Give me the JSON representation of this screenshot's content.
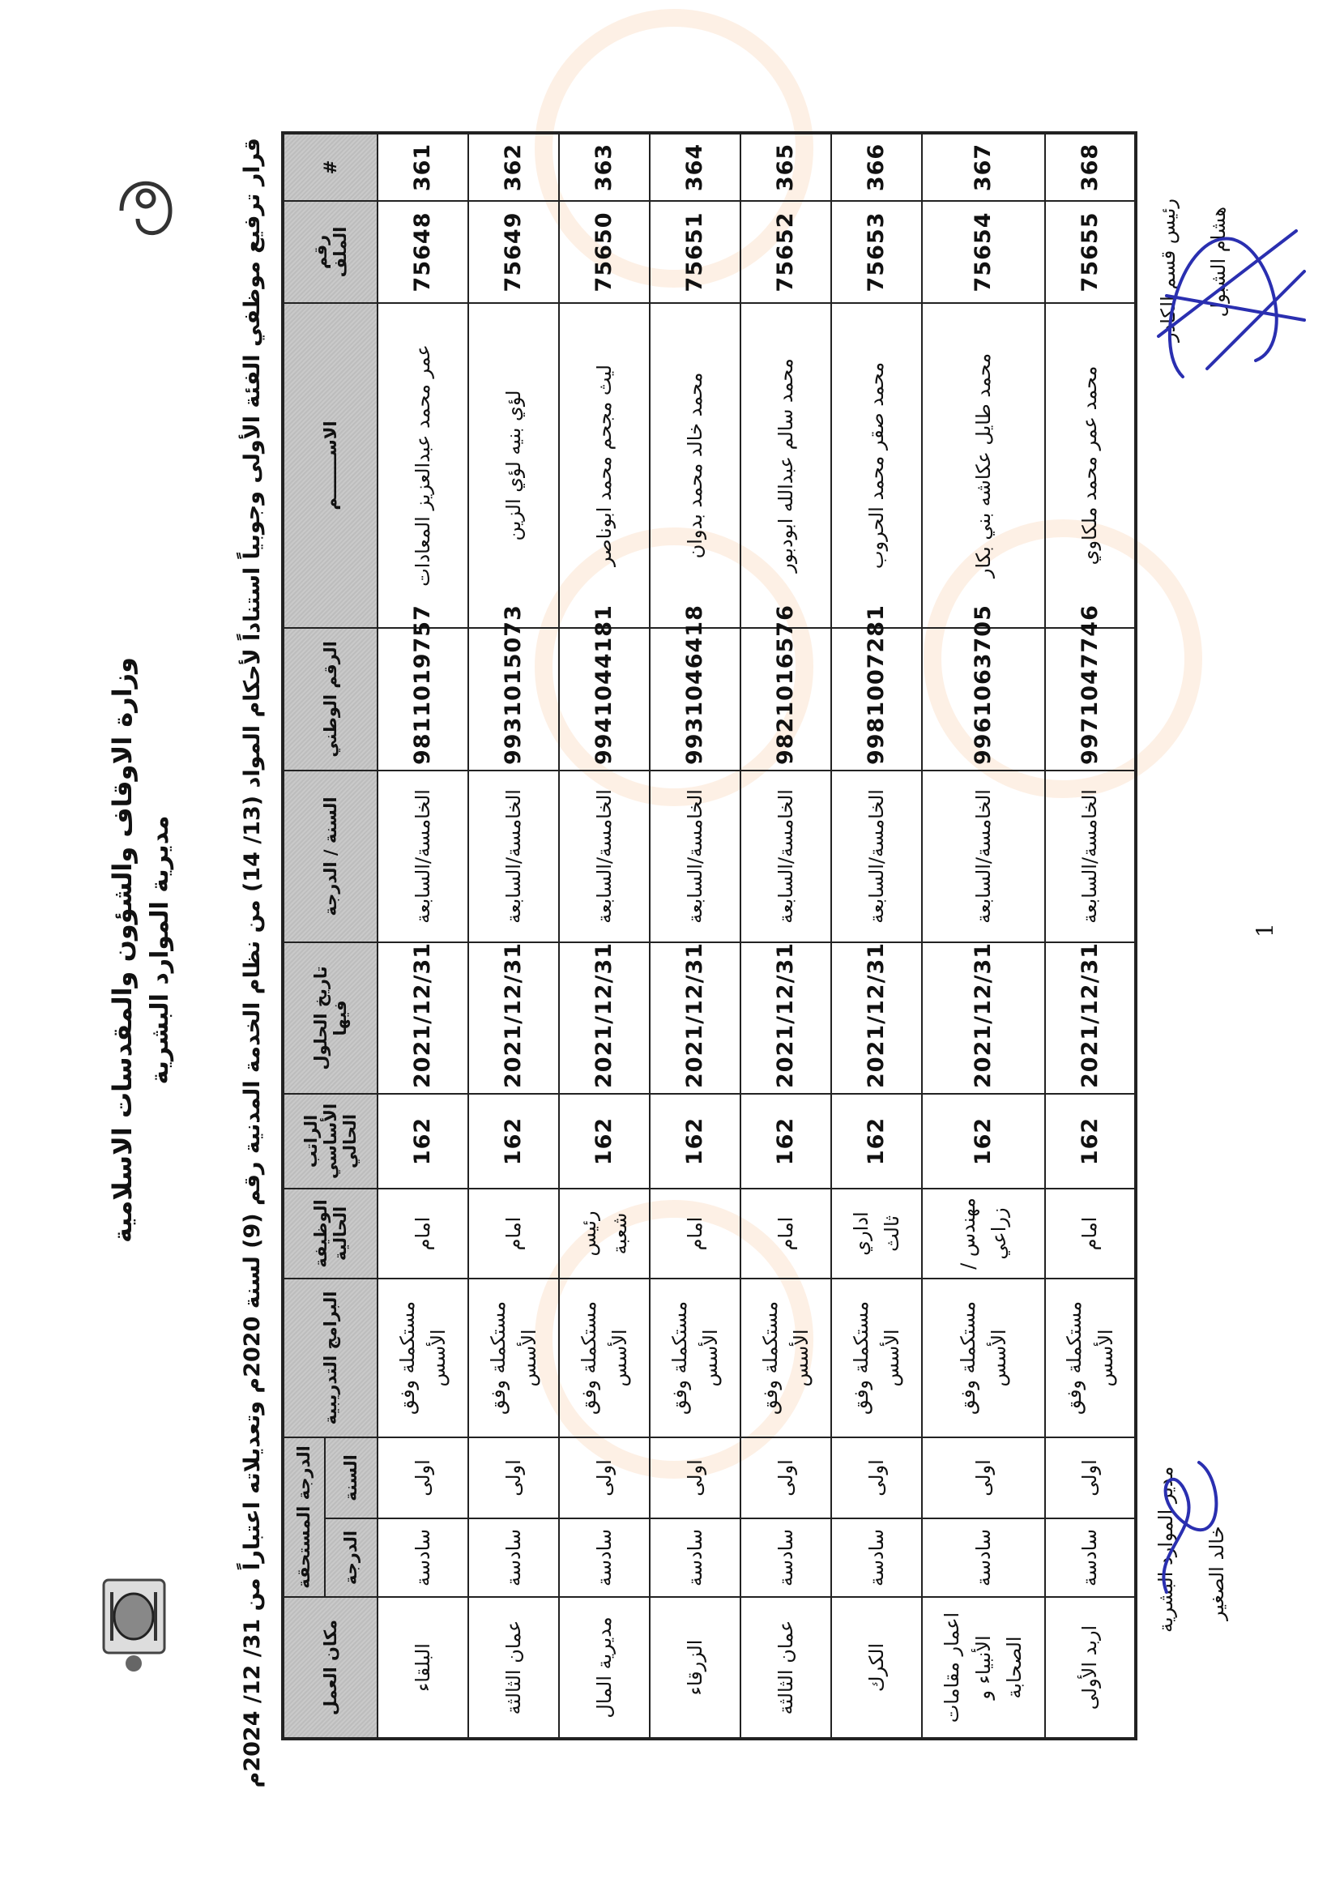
{
  "header": {
    "ministry": "وزارة الاوقاف والشؤون والمقدسات الاسلامية",
    "department": "مديرية الموارد البشرية",
    "decision_title": "قرار ترفيع موظفي الفئة الأولى وجوبياً استناداً لأحكام المواد (13/ 14) من نظام الخدمة المدنية رقم (9) لسنة 2020م وتعديلاته اعتباراً من 31/ 12/ 2024م"
  },
  "table": {
    "columns": {
      "index": "#",
      "file_no": "رقم الملف",
      "name": "الاســـــــم",
      "national_id": "الرقم الوطني",
      "year_grade": "السنة / الدرجة",
      "date": "تاريخ الحلول فيها",
      "salary": "الراتب الأساسي الحالي",
      "job": "الوظيفة الحالية",
      "programs": "البرامج التدريبية",
      "entitled": "الدرجة المستحقة",
      "entitled_year": "السنة",
      "entitled_grade": "الدرجة",
      "workplace": "مكان العمل"
    },
    "rows": [
      {
        "index": "361",
        "file_no": "75648",
        "name": "عمر محمد عبدالعزيز المعادات",
        "national_id": "9811019757",
        "year_grade": "الخامسة/السابعة",
        "date": "2021/12/31",
        "salary": "162",
        "job": "امام",
        "programs": "مستكملة وفق الأسس",
        "entitled_year": "اولى",
        "entitled_grade": "سادسة",
        "workplace": "البلقاء"
      },
      {
        "index": "362",
        "file_no": "75649",
        "name": "لؤي بنيه لؤي الزين",
        "national_id": "9931015073",
        "year_grade": "الخامسة/السابعة",
        "date": "2021/12/31",
        "salary": "162",
        "job": "امام",
        "programs": "مستكملة وفق الأسس",
        "entitled_year": "اولى",
        "entitled_grade": "سادسة",
        "workplace": "عمان الثالثة"
      },
      {
        "index": "363",
        "file_no": "75650",
        "name": "ليث مجحم محمد ابوناصر",
        "national_id": "9941044181",
        "year_grade": "الخامسة/السابعة",
        "date": "2021/12/31",
        "salary": "162",
        "job": "رئيس شعبة",
        "programs": "مستكملة وفق الأسس",
        "entitled_year": "اولى",
        "entitled_grade": "سادسة",
        "workplace": "مديرية المال"
      },
      {
        "index": "364",
        "file_no": "75651",
        "name": "محمد خالد محمد بدوان",
        "national_id": "9931046418",
        "year_grade": "الخامسة/السابعة",
        "date": "2021/12/31",
        "salary": "162",
        "job": "امام",
        "programs": "مستكملة وفق الأسس",
        "entitled_year": "اولى",
        "entitled_grade": "سادسة",
        "workplace": "الزرقاء"
      },
      {
        "index": "365",
        "file_no": "75652",
        "name": "محمد سالم عبدالله ابودبور",
        "national_id": "9821016576",
        "year_grade": "الخامسة/السابعة",
        "date": "2021/12/31",
        "salary": "162",
        "job": "امام",
        "programs": "مستكملة وفق الأسس",
        "entitled_year": "اولى",
        "entitled_grade": "سادسة",
        "workplace": "عمان الثالثة"
      },
      {
        "index": "366",
        "file_no": "75653",
        "name": "محمد صقر محمد الحروب",
        "national_id": "9981007281",
        "year_grade": "الخامسة/السابعة",
        "date": "2021/12/31",
        "salary": "162",
        "job": "اداري ثالث",
        "programs": "مستكملة وفق الأسس",
        "entitled_year": "اولى",
        "entitled_grade": "سادسة",
        "workplace": "الكرك"
      },
      {
        "index": "367",
        "file_no": "75654",
        "name": "محمد طايل عكاشه بني بكار",
        "national_id": "9961063705",
        "year_grade": "الخامسة/السابعة",
        "date": "2021/12/31",
        "salary": "162",
        "job": "مهندس /زراعي",
        "programs": "مستكملة وفق الأسس",
        "entitled_year": "اولى",
        "entitled_grade": "سادسة",
        "workplace": "اعمار مقامات الأنبياء و الصحابة"
      },
      {
        "index": "368",
        "file_no": "75655",
        "name": "محمد عمر محمد ملكاوي",
        "national_id": "9971047746",
        "year_grade": "الخامسة/السابعة",
        "date": "2021/12/31",
        "salary": "162",
        "job": "امام",
        "programs": "مستكملة وفق الأسس",
        "entitled_year": "اولى",
        "entitled_grade": "سادسة",
        "workplace": "اربد الأولى"
      }
    ]
  },
  "signatures": {
    "cadre_head_title": "رئيس قسم الكادر",
    "cadre_head_name": "هشام الشبول",
    "hr_director_title": "مدير الموارد البشرية",
    "hr_director_name": "خالد الصغير",
    "ink_color": "#2a2fb0"
  },
  "page_number": "1"
}
